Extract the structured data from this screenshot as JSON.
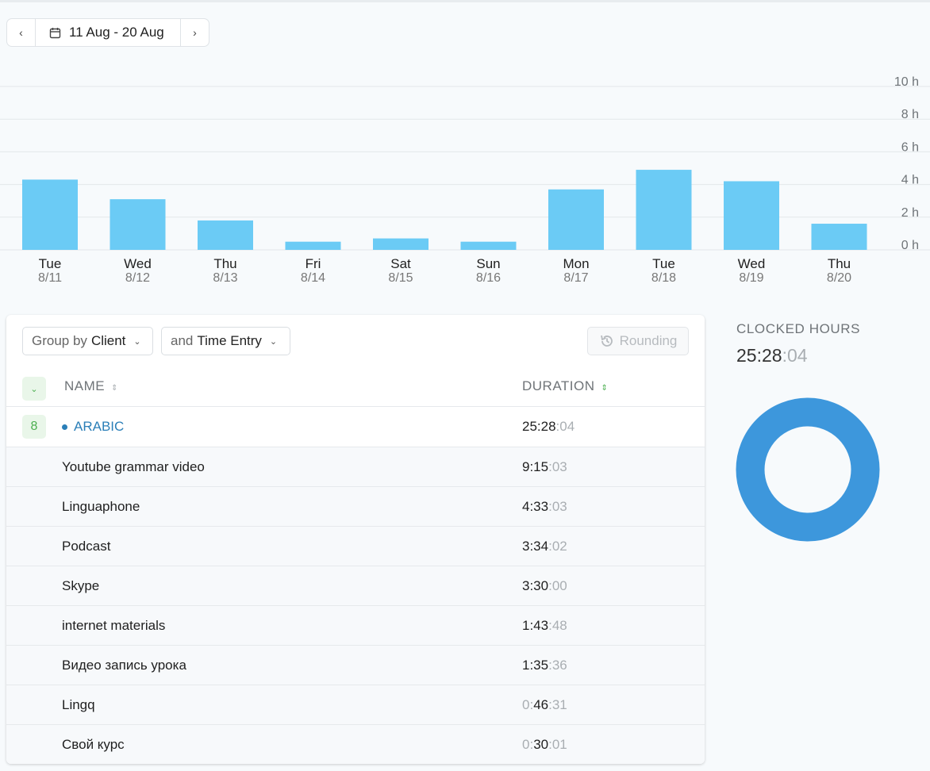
{
  "date_range": {
    "label": "11 Aug - 20 Aug"
  },
  "chart_data": {
    "type": "bar",
    "categories": [
      "Tue",
      "Wed",
      "Thu",
      "Fri",
      "Sat",
      "Sun",
      "Mon",
      "Tue",
      "Wed",
      "Thu"
    ],
    "dates": [
      "8/11",
      "8/12",
      "8/13",
      "8/14",
      "8/15",
      "8/16",
      "8/17",
      "8/18",
      "8/19",
      "8/20"
    ],
    "values": [
      4.3,
      3.1,
      1.8,
      0.5,
      0.7,
      0.5,
      3.7,
      4.9,
      4.2,
      1.6
    ],
    "y_ticks": [
      "10 h",
      "8 h",
      "6 h",
      "4 h",
      "2 h",
      "0 h"
    ],
    "ylim": [
      0,
      10
    ],
    "unit": "h",
    "bar_color": "#6bcbf5",
    "grid": true
  },
  "controls": {
    "group_prefix": "Group by",
    "group_value": "Client",
    "and_prefix": "and",
    "and_value": "Time Entry",
    "rounding_label": "Rounding"
  },
  "table": {
    "col_name": "NAME",
    "col_duration": "DURATION",
    "client": {
      "count": "8",
      "name": "ARABIC",
      "color": "#2b7fb8",
      "dur_main": "25:28",
      "dur_sec": ":04"
    },
    "rows": [
      {
        "name": "Youtube grammar video",
        "dur_lead": "",
        "dur_main": "9:15",
        "dur_sec": ":03"
      },
      {
        "name": "Linguaphone",
        "dur_lead": "",
        "dur_main": "4:33",
        "dur_sec": ":03"
      },
      {
        "name": "Podcast",
        "dur_lead": "",
        "dur_main": "3:34",
        "dur_sec": ":02"
      },
      {
        "name": "Skype",
        "dur_lead": "",
        "dur_main": "3:30",
        "dur_sec": ":00"
      },
      {
        "name": "internet materials",
        "dur_lead": "",
        "dur_main": "1:43",
        "dur_sec": ":48"
      },
      {
        "name": "Видео запись урока",
        "dur_lead": "",
        "dur_main": "1:35",
        "dur_sec": ":36"
      },
      {
        "name": "Lingq",
        "dur_lead": "0:",
        "dur_main": "46",
        "dur_sec": ":31"
      },
      {
        "name": "Свой курс",
        "dur_lead": "0:",
        "dur_main": "30",
        "dur_sec": ":01"
      }
    ]
  },
  "summary": {
    "title": "CLOCKED HOURS",
    "value_main": "25:28",
    "value_sec": ":04",
    "donut_color": "#3d97dc",
    "donut_share": 1
  }
}
